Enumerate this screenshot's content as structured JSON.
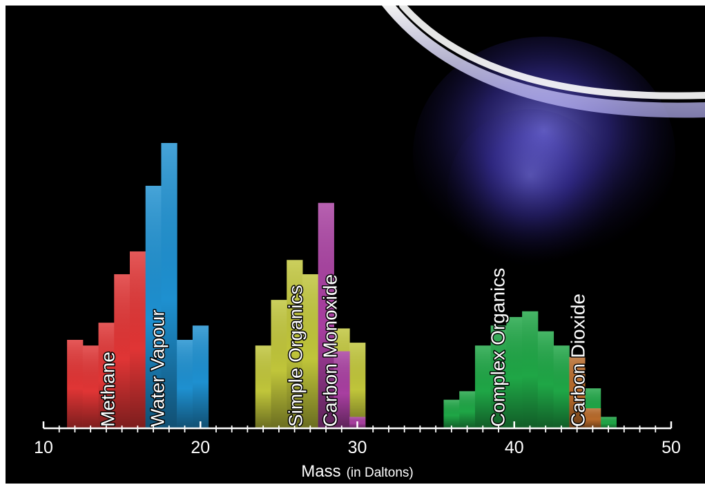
{
  "chart_data": {
    "type": "bar",
    "xlabel": "Mass",
    "xlabel_note": "(in Daltons)",
    "xlim": [
      10,
      50
    ],
    "xticks": [
      10,
      20,
      30,
      40,
      50
    ],
    "grid": false,
    "legend": "none",
    "series": [
      {
        "name": "Methane",
        "color": "#e03535",
        "bins": [
          {
            "x0": 11.5,
            "x1": 12.5,
            "value": 3.1
          },
          {
            "x0": 12.5,
            "x1": 13.5,
            "value": 2.9
          },
          {
            "x0": 13.5,
            "x1": 14.5,
            "value": 3.7
          },
          {
            "x0": 14.5,
            "x1": 15.5,
            "value": 5.4
          },
          {
            "x0": 15.5,
            "x1": 16.5,
            "value": 6.2
          }
        ]
      },
      {
        "name": "Water Vapour",
        "color": "#1e90d0",
        "bins": [
          {
            "x0": 16.5,
            "x1": 17.5,
            "value": 8.5
          },
          {
            "x0": 17.5,
            "x1": 18.5,
            "value": 10.0
          },
          {
            "x0": 18.5,
            "x1": 19.5,
            "value": 3.1
          },
          {
            "x0": 19.5,
            "x1": 20.5,
            "value": 3.6
          }
        ]
      },
      {
        "name": "Simple Organics",
        "color": "#c0c53a",
        "bins": [
          {
            "x0": 23.5,
            "x1": 24.5,
            "value": 2.9
          },
          {
            "x0": 24.5,
            "x1": 25.5,
            "value": 4.5
          },
          {
            "x0": 25.5,
            "x1": 26.5,
            "value": 5.9
          },
          {
            "x0": 26.5,
            "x1": 27.5,
            "value": 5.4
          },
          {
            "x0": 27.5,
            "x1": 28.5,
            "value": 4.4
          },
          {
            "x0": 28.5,
            "x1": 29.5,
            "value": 3.5
          },
          {
            "x0": 29.5,
            "x1": 30.5,
            "value": 3.0
          }
        ]
      },
      {
        "name": "Carbon Monoxide",
        "color": "#a83fa0",
        "bins": [
          {
            "x0": 27.5,
            "x1": 28.5,
            "value": 7.9
          },
          {
            "x0": 28.5,
            "x1": 29.5,
            "value": 2.7
          },
          {
            "x0": 29.5,
            "x1": 30.5,
            "value": 0.4
          }
        ]
      },
      {
        "name": "Complex Organics",
        "color": "#1fa646",
        "bins": [
          {
            "x0": 35.5,
            "x1": 36.5,
            "value": 1.0
          },
          {
            "x0": 36.5,
            "x1": 37.5,
            "value": 1.3
          },
          {
            "x0": 37.5,
            "x1": 38.5,
            "value": 2.9
          },
          {
            "x0": 38.5,
            "x1": 39.5,
            "value": 3.6
          },
          {
            "x0": 39.5,
            "x1": 40.5,
            "value": 3.9
          },
          {
            "x0": 40.5,
            "x1": 41.5,
            "value": 4.1
          },
          {
            "x0": 41.5,
            "x1": 42.5,
            "value": 3.4
          },
          {
            "x0": 42.5,
            "x1": 43.5,
            "value": 2.9
          },
          {
            "x0": 43.5,
            "x1": 44.5,
            "value": 2.2
          },
          {
            "x0": 44.5,
            "x1": 45.5,
            "value": 1.4
          },
          {
            "x0": 45.5,
            "x1": 46.5,
            "value": 0.4
          }
        ]
      },
      {
        "name": "Carbon Dioxide",
        "color": "#b86a2a",
        "bins": [
          {
            "x0": 43.5,
            "x1": 44.5,
            "value": 2.5
          },
          {
            "x0": 44.5,
            "x1": 45.5,
            "value": 0.7
          }
        ]
      }
    ]
  }
}
